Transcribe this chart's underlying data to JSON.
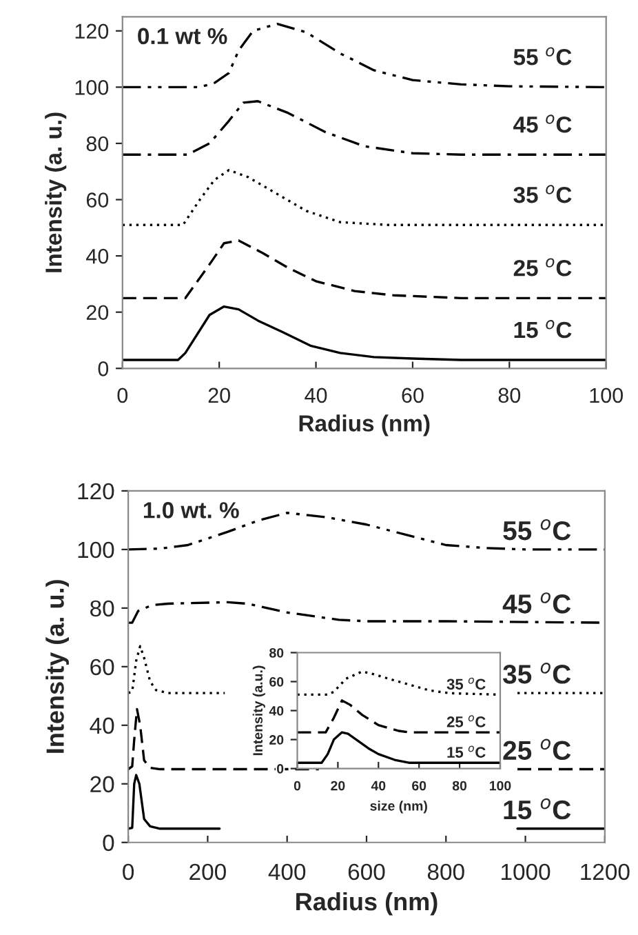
{
  "chart_data": [
    {
      "type": "line",
      "xlabel": "Radius (nm)",
      "ylabel": "Intensity (a. u.)",
      "annotations": [
        "0.1 wt %"
      ],
      "xlim": [
        0,
        100
      ],
      "ylim": [
        0,
        125
      ],
      "xticks": [
        0,
        20,
        40,
        60,
        80,
        100
      ],
      "yticks": [
        0,
        20,
        40,
        60,
        80,
        100,
        120
      ],
      "grid": false,
      "legend": false,
      "marker": "none",
      "series": [
        {
          "name": "15 $^{o}$C",
          "color": "#000000",
          "line_style": "solid",
          "x": [
            0,
            11.5,
            13,
            18,
            21,
            24,
            28,
            33,
            39,
            45,
            52,
            60,
            70,
            100
          ],
          "values": [
            3,
            3,
            5.5,
            19,
            22,
            21,
            17,
            13,
            8,
            5.5,
            4,
            3.5,
            3,
            3
          ]
        },
        {
          "name": "25 $^{o}$C",
          "color": "#000000",
          "line_style": "dashed",
          "x": [
            0,
            13,
            18,
            21,
            24,
            29,
            34,
            40,
            48,
            56,
            70,
            100
          ],
          "values": [
            25,
            25,
            37,
            44.5,
            45.5,
            41,
            36,
            31,
            27.5,
            26,
            25,
            25
          ]
        },
        {
          "name": "35 $^{o}$C",
          "color": "#000000",
          "line_style": "dotted",
          "x": [
            0,
            12.5,
            16,
            19,
            22,
            26,
            32,
            38,
            45,
            55,
            100
          ],
          "values": [
            51,
            51,
            60,
            67,
            70.5,
            68,
            62,
            56,
            52,
            51,
            51
          ]
        },
        {
          "name": "45 $^{o}$C",
          "color": "#000000",
          "line_style": "dashdot",
          "x": [
            0,
            13.5,
            18,
            22,
            25,
            28,
            34,
            42,
            50,
            60,
            70,
            100
          ],
          "values": [
            76,
            76,
            80,
            88,
            94.5,
            95,
            91,
            84,
            79,
            76.5,
            76,
            76
          ]
        },
        {
          "name": "55 $^{o}$C",
          "color": "#000000",
          "line_style": "dashdotdot",
          "x": [
            0,
            16,
            19,
            22,
            24,
            27,
            32,
            38,
            45,
            52,
            60,
            70,
            80,
            100
          ],
          "values": [
            100,
            100,
            101.5,
            105,
            113,
            120,
            122.5,
            119.5,
            112,
            106,
            102.5,
            101,
            100.3,
            100
          ]
        }
      ]
    },
    {
      "type": "line",
      "xlabel": "Radius (nm)",
      "ylabel": "Intensity (a. u.)",
      "annotations": [
        "1.0 wt. %"
      ],
      "xlim": [
        0,
        1200
      ],
      "ylim": [
        0,
        120
      ],
      "xticks": [
        0,
        200,
        400,
        600,
        800,
        1000,
        1200
      ],
      "yticks": [
        0,
        20,
        40,
        60,
        80,
        100,
        120
      ],
      "grid": false,
      "legend": false,
      "marker": "none",
      "series": [
        {
          "name": "15 $^{o}$C",
          "color": "#000000",
          "line_style": "solid",
          "x": [
            0,
            10,
            15,
            20,
            28,
            40,
            55,
            80,
            230,
            600,
            980,
            1200
          ],
          "values": [
            4.7,
            5,
            20,
            23,
            20,
            8,
            5.5,
            4.7,
            4.7,
            null,
            4.7,
            4.7
          ]
        },
        {
          "name": "25 $^{o}$C",
          "color": "#000000",
          "line_style": "dashed",
          "x": [
            0,
            10,
            15,
            22,
            30,
            40,
            55,
            80,
            480,
            700,
            980,
            1200
          ],
          "values": [
            25,
            26,
            35,
            45.5,
            40,
            28,
            25.5,
            25,
            25,
            null,
            25,
            25
          ]
        },
        {
          "name": "35 $^{o}$C",
          "color": "#000000",
          "line_style": "dotted",
          "x": [
            0,
            10,
            20,
            30,
            40,
            55,
            70,
            100,
            243,
            600,
            980,
            1200
          ],
          "values": [
            51,
            51.5,
            62,
            67,
            63,
            55,
            52,
            51,
            51,
            null,
            51,
            51
          ]
        },
        {
          "name": "45 $^{o}$C",
          "color": "#000000",
          "line_style": "dashdot",
          "x": [
            0,
            10,
            25,
            60,
            100,
            250,
            300,
            400,
            530,
            600,
            800,
            1200
          ],
          "values": [
            75,
            75,
            79,
            81,
            81.5,
            82,
            81.5,
            78.5,
            76,
            75.5,
            75.5,
            75
          ]
        },
        {
          "name": "55 $^{o}$C",
          "color": "#000000",
          "line_style": "dashdotdot",
          "x": [
            0,
            80,
            150,
            250,
            330,
            400,
            500,
            600,
            700,
            800,
            900,
            1000,
            1200
          ],
          "values": [
            100,
            100.3,
            101.5,
            106,
            110,
            112.5,
            111,
            108.5,
            105,
            101.5,
            100.5,
            100,
            100
          ]
        }
      ]
    },
    {
      "type": "line",
      "xlabel": "size (nm)",
      "ylabel": "Intensity (a.u.)",
      "xlim": [
        0,
        100
      ],
      "ylim": [
        0,
        80
      ],
      "xticks": [
        0,
        20,
        40,
        60,
        80,
        100
      ],
      "yticks": [
        0,
        20,
        40,
        60,
        80
      ],
      "grid": false,
      "legend": false,
      "marker": "none",
      "series": [
        {
          "name": "15 $^{o}$C",
          "color": "#000000",
          "line_style": "solid",
          "x": [
            0,
            12,
            15,
            18,
            22,
            25,
            30,
            35,
            40,
            48,
            55,
            100
          ],
          "values": [
            4,
            4,
            10,
            20,
            25,
            24,
            19,
            14,
            10,
            6,
            4,
            4
          ]
        },
        {
          "name": "25 $^{o}$C",
          "color": "#000000",
          "line_style": "dashed",
          "x": [
            0,
            14,
            18,
            22,
            26,
            32,
            40,
            50,
            55,
            100
          ],
          "values": [
            25,
            25,
            35,
            47,
            44,
            37,
            30,
            26,
            25,
            25
          ]
        },
        {
          "name": "35 $^{o}$C",
          "color": "#000000",
          "line_style": "dotted",
          "x": [
            0,
            15,
            18,
            24,
            32,
            38,
            45,
            55,
            65,
            75,
            100
          ],
          "values": [
            51,
            51,
            53,
            62,
            67,
            65,
            62,
            58,
            54,
            52,
            51
          ]
        }
      ]
    }
  ]
}
